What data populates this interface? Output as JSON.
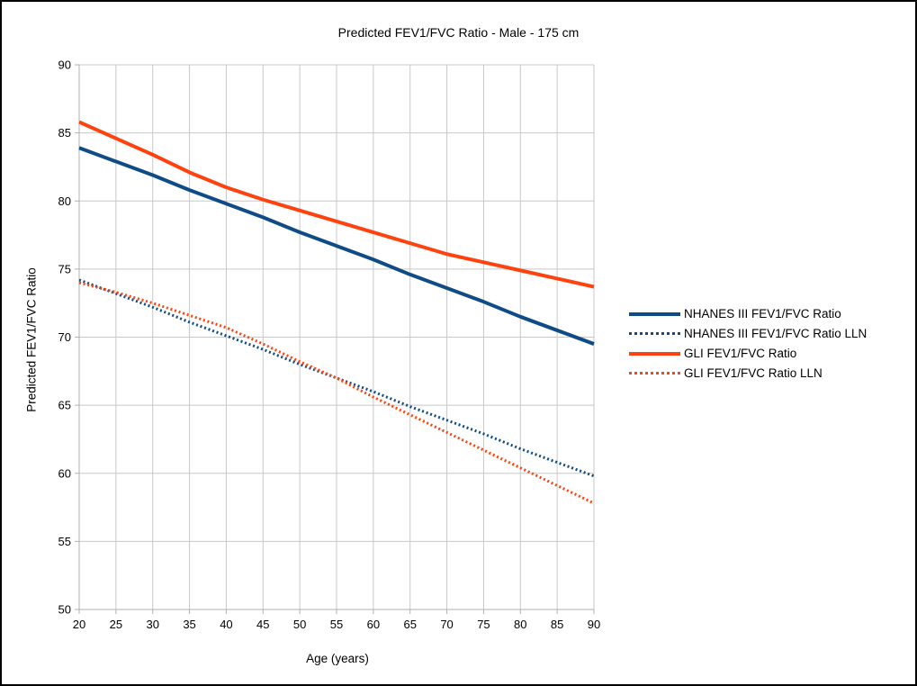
{
  "chart_data": {
    "type": "line",
    "title": "Predicted FEV1/FVC Ratio - Male - 175 cm",
    "xlabel": "Age (years)",
    "ylabel": "Predicted FEV1/FVC Ratio",
    "xlim": [
      20,
      90
    ],
    "ylim": [
      50,
      90
    ],
    "x_ticks": [
      20,
      25,
      30,
      35,
      40,
      45,
      50,
      55,
      60,
      65,
      70,
      75,
      80,
      85,
      90
    ],
    "y_ticks": [
      50,
      55,
      60,
      65,
      70,
      75,
      80,
      85,
      90
    ],
    "grid": true,
    "legend_position": "right",
    "x": [
      20,
      25,
      30,
      35,
      40,
      45,
      50,
      55,
      60,
      65,
      70,
      75,
      80,
      85,
      90
    ],
    "series": [
      {
        "name": "NHANES III FEV1/FVC Ratio",
        "style": "solid",
        "color": "#0f4c85",
        "values": [
          83.9,
          82.9,
          81.9,
          80.8,
          79.8,
          78.8,
          77.7,
          76.7,
          75.7,
          74.6,
          73.6,
          72.6,
          71.5,
          70.5,
          69.5
        ]
      },
      {
        "name": "NHANES III FEV1/FVC Ratio LLN",
        "style": "dotted",
        "color": "#0f4c85",
        "values": [
          74.2,
          73.2,
          72.2,
          71.1,
          70.1,
          69.1,
          68.0,
          67.0,
          66.0,
          64.9,
          63.9,
          62.9,
          61.8,
          60.8,
          59.8
        ]
      },
      {
        "name": "GLI FEV1/FVC Ratio",
        "style": "solid",
        "color": "#ff420e",
        "values": [
          85.8,
          84.6,
          83.4,
          82.1,
          81.0,
          80.1,
          79.3,
          78.5,
          77.7,
          76.9,
          76.1,
          75.5,
          74.9,
          74.3,
          73.7
        ]
      },
      {
        "name": "GLI FEV1/FVC Ratio LLN",
        "style": "dotted",
        "color": "#ff420e",
        "values": [
          74.0,
          73.3,
          72.5,
          71.6,
          70.7,
          69.5,
          68.2,
          67.0,
          65.6,
          64.3,
          63.0,
          61.7,
          60.4,
          59.1,
          57.8
        ]
      }
    ],
    "colors": {
      "grid": "#c8c8c8",
      "axis": "#b0b0b0",
      "text": "#000000",
      "background": "#ffffff",
      "border": "#000000"
    }
  }
}
